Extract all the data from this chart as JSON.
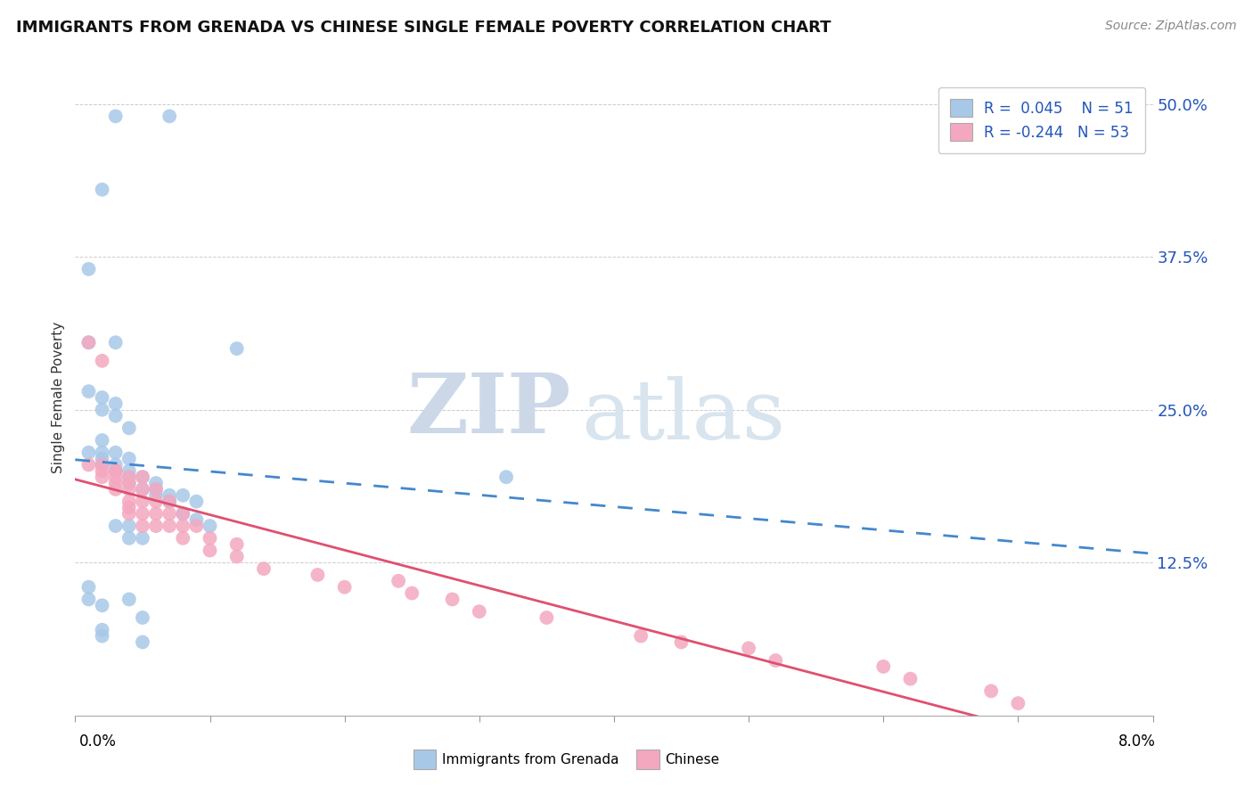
{
  "title": "IMMIGRANTS FROM GRENADA VS CHINESE SINGLE FEMALE POVERTY CORRELATION CHART",
  "source": "Source: ZipAtlas.com",
  "ylabel": "Single Female Poverty",
  "xlim": [
    0.0,
    0.08
  ],
  "ylim": [
    0.0,
    0.52
  ],
  "yticks": [
    0.125,
    0.25,
    0.375,
    0.5
  ],
  "ytick_labels": [
    "12.5%",
    "25.0%",
    "37.5%",
    "50.0%"
  ],
  "blue_color": "#a8c8e8",
  "pink_color": "#f4a8c0",
  "line_blue": "#4488cc",
  "line_pink": "#e05070",
  "watermark_zip": "ZIP",
  "watermark_atlas": "atlas",
  "blue_x": [
    0.003,
    0.007,
    0.002,
    0.001,
    0.001,
    0.003,
    0.001,
    0.002,
    0.003,
    0.002,
    0.003,
    0.004,
    0.002,
    0.001,
    0.002,
    0.002,
    0.002,
    0.003,
    0.004,
    0.003,
    0.003,
    0.004,
    0.004,
    0.005,
    0.004,
    0.006,
    0.005,
    0.006,
    0.006,
    0.007,
    0.007,
    0.008,
    0.007,
    0.009,
    0.008,
    0.009,
    0.01,
    0.003,
    0.004,
    0.004,
    0.005,
    0.012,
    0.032,
    0.001,
    0.001,
    0.002,
    0.002,
    0.002,
    0.004,
    0.005,
    0.005
  ],
  "blue_y": [
    0.49,
    0.49,
    0.43,
    0.365,
    0.305,
    0.305,
    0.265,
    0.26,
    0.255,
    0.25,
    0.245,
    0.235,
    0.225,
    0.215,
    0.215,
    0.21,
    0.205,
    0.205,
    0.21,
    0.215,
    0.2,
    0.2,
    0.195,
    0.195,
    0.19,
    0.19,
    0.185,
    0.185,
    0.18,
    0.18,
    0.175,
    0.18,
    0.175,
    0.175,
    0.165,
    0.16,
    0.155,
    0.155,
    0.155,
    0.145,
    0.145,
    0.3,
    0.195,
    0.105,
    0.095,
    0.09,
    0.07,
    0.065,
    0.095,
    0.08,
    0.06
  ],
  "pink_x": [
    0.001,
    0.002,
    0.002,
    0.002,
    0.003,
    0.003,
    0.003,
    0.003,
    0.003,
    0.004,
    0.004,
    0.004,
    0.004,
    0.004,
    0.004,
    0.005,
    0.005,
    0.005,
    0.005,
    0.005,
    0.006,
    0.006,
    0.006,
    0.006,
    0.007,
    0.007,
    0.007,
    0.008,
    0.008,
    0.008,
    0.009,
    0.01,
    0.01,
    0.012,
    0.012,
    0.014,
    0.018,
    0.02,
    0.024,
    0.025,
    0.028,
    0.03,
    0.035,
    0.042,
    0.045,
    0.05,
    0.052,
    0.06,
    0.062,
    0.068,
    0.07,
    0.001,
    0.002
  ],
  "pink_y": [
    0.205,
    0.205,
    0.2,
    0.195,
    0.2,
    0.2,
    0.195,
    0.19,
    0.185,
    0.195,
    0.19,
    0.185,
    0.175,
    0.17,
    0.165,
    0.195,
    0.185,
    0.175,
    0.165,
    0.155,
    0.185,
    0.175,
    0.165,
    0.155,
    0.175,
    0.165,
    0.155,
    0.165,
    0.155,
    0.145,
    0.155,
    0.145,
    0.135,
    0.14,
    0.13,
    0.12,
    0.115,
    0.105,
    0.11,
    0.1,
    0.095,
    0.085,
    0.08,
    0.065,
    0.06,
    0.055,
    0.045,
    0.04,
    0.03,
    0.02,
    0.01,
    0.305,
    0.29
  ]
}
